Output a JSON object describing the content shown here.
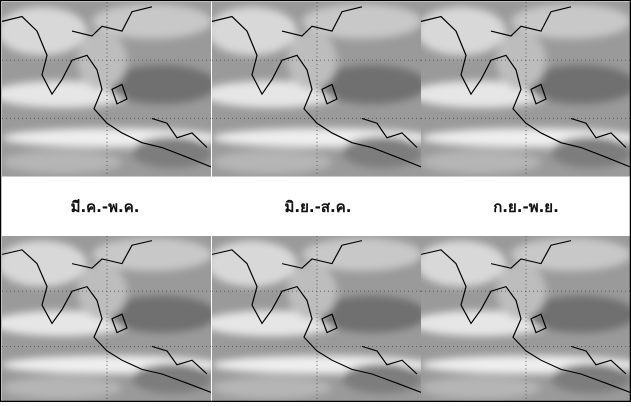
{
  "labels": [
    "มี.ค.-พ.ค.",
    "มิ.ย.-ส.ค.",
    "ก.ย.-พ.ย."
  ]
}
